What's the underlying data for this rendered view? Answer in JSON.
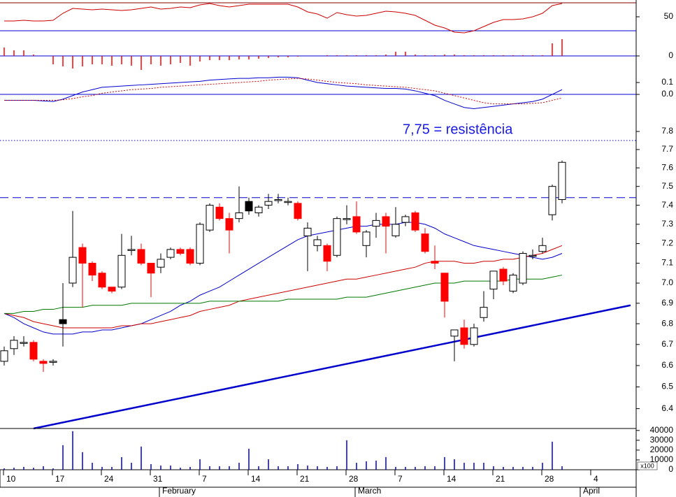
{
  "chart_data": {
    "type": "candlestick",
    "categories": [
      "10",
      null,
      null,
      null,
      null,
      "17",
      null,
      null,
      null,
      null,
      "24",
      null,
      null,
      null,
      null,
      "31",
      null,
      null,
      null,
      null,
      "7",
      null,
      null,
      null,
      null,
      "14",
      null,
      null,
      null,
      null,
      "21",
      null,
      null,
      null,
      null,
      "28",
      null,
      null,
      null,
      null,
      "7",
      null,
      null,
      null,
      null,
      "14",
      null,
      null,
      null,
      null,
      "21",
      null,
      null,
      null,
      null,
      "28",
      null,
      null,
      null,
      null,
      "4",
      null,
      null,
      null,
      null
    ],
    "months": [
      null,
      null,
      null,
      null,
      null,
      null,
      null,
      null,
      null,
      null,
      null,
      null,
      null,
      null,
      null,
      null,
      "February",
      null,
      null,
      null,
      null,
      null,
      null,
      null,
      null,
      null,
      null,
      null,
      null,
      null,
      null,
      null,
      null,
      null,
      null,
      null,
      "March",
      null,
      null,
      null,
      null,
      null,
      null,
      null,
      null,
      null,
      null,
      null,
      null,
      null,
      null,
      null,
      null,
      null,
      null,
      null,
      null,
      null,
      null,
      "April",
      null,
      null,
      null,
      null,
      null
    ],
    "annotation": "7,75 = resistência",
    "price": {
      "type": "candlestick",
      "log": true,
      "ylim": [
        6.31,
        7.91
      ],
      "yticks": [
        6.4,
        6.5,
        6.6,
        6.7,
        6.8,
        6.9,
        {
          "value": 7,
          "label": "7.0"
        },
        7.1,
        7.2,
        7.3,
        7.4,
        7.5,
        7.6,
        7.7,
        7.8
      ],
      "open": [
        6.62,
        6.68,
        6.71,
        6.71,
        6.62,
        6.62,
        6.8,
        7.0,
        7.18,
        7.1,
        7.05,
        6.98,
        6.98,
        7.17,
        7.17,
        7.1,
        7.08,
        7.13,
        7.17,
        7.17,
        7.1,
        7.27,
        7.39,
        7.33,
        7.33,
        7.37,
        7.36,
        7.4,
        7.43,
        7.42,
        7.41,
        7.24,
        7.19,
        7.19,
        7.14,
        7.33,
        7.34,
        7.19,
        7.29,
        7.34,
        7.24,
        7.31,
        7.36,
        7.25,
        7.11,
        7.05,
        6.74,
        6.78,
        6.7,
        6.83,
        6.97,
        7.07,
        6.96,
        7.0,
        7.14,
        7.16,
        7.35,
        7.43,
        null,
        null,
        null,
        null,
        null,
        null,
        null
      ],
      "high": [
        6.69,
        6.74,
        6.74,
        6.72,
        6.63,
        6.63,
        7.0,
        7.37,
        7.2,
        7.11,
        7.06,
        6.98,
        7.25,
        7.24,
        7.2,
        7.1,
        7.15,
        7.18,
        7.18,
        7.18,
        7.31,
        7.41,
        7.41,
        7.36,
        7.5,
        7.44,
        7.4,
        7.46,
        7.46,
        7.44,
        7.42,
        7.31,
        7.24,
        7.2,
        7.34,
        7.4,
        7.42,
        7.27,
        7.36,
        7.36,
        7.39,
        7.35,
        7.37,
        7.28,
        7.19,
        7.05,
        6.77,
        6.82,
        6.8,
        6.96,
        7.06,
        7.08,
        7.05,
        7.16,
        7.17,
        7.23,
        7.51,
        7.64,
        null,
        null,
        null,
        null,
        null,
        null,
        null
      ],
      "low": [
        6.6,
        6.65,
        6.69,
        6.62,
        6.57,
        6.6,
        6.69,
        6.98,
        6.88,
        7.01,
        6.97,
        6.95,
        6.97,
        7.14,
        7.09,
        6.93,
        7.05,
        7.12,
        7.14,
        7.09,
        7.09,
        7.26,
        7.32,
        7.15,
        7.31,
        7.35,
        7.34,
        7.38,
        7.41,
        7.4,
        7.32,
        7.06,
        7.16,
        7.06,
        7.13,
        7.3,
        7.25,
        7.13,
        7.23,
        7.15,
        7.23,
        7.29,
        7.26,
        7.15,
        7.07,
        6.83,
        6.62,
        6.68,
        6.69,
        6.81,
        6.92,
        6.99,
        6.95,
        6.99,
        7.12,
        7.15,
        7.32,
        7.41,
        null,
        null,
        null,
        null,
        null,
        null,
        null
      ],
      "close": [
        6.67,
        6.72,
        6.71,
        6.63,
        6.61,
        6.62,
        6.82,
        7.13,
        7.1,
        7.04,
        6.98,
        6.96,
        7.14,
        7.17,
        7.1,
        7.05,
        7.12,
        7.17,
        7.15,
        7.1,
        7.3,
        7.4,
        7.33,
        7.27,
        7.36,
        7.42,
        7.39,
        7.42,
        7.43,
        7.42,
        7.33,
        7.28,
        7.22,
        7.11,
        7.33,
        7.33,
        7.26,
        7.26,
        7.32,
        7.29,
        7.3,
        7.34,
        7.27,
        7.16,
        7.1,
        6.91,
        6.77,
        6.7,
        6.78,
        6.88,
        7.06,
        7.01,
        7.04,
        7.15,
        7.14,
        7.19,
        7.5,
        7.63,
        null,
        null,
        null,
        null,
        null,
        null,
        null
      ],
      "colors": [
        "#ffffff",
        "#ffffff",
        "#ffffff",
        "#ff0000",
        "#ff0000",
        "#ffffff",
        "#000000",
        "#ffffff",
        "#ff0000",
        "#ff0000",
        "#ff0000",
        "#ff0000",
        "#ffffff",
        "#ffffff",
        "#ff0000",
        "#ff0000",
        "#ffffff",
        "#ffffff",
        "#ff0000",
        "#ff0000",
        "#ffffff",
        "#ffffff",
        "#ff0000",
        "#ff0000",
        "#ffffff",
        "#000000",
        "#ffffff",
        "#ffffff",
        "#ffffff",
        "#ffffff",
        "#ff0000",
        "#ffffff",
        "#ffffff",
        "#ff0000",
        "#ffffff",
        "#ffffff",
        "#ff0000",
        "#ffffff",
        "#ffffff",
        "#ff0000",
        "#ffffff",
        "#ffffff",
        "#ff0000",
        "#ff0000",
        "#ff0000",
        "#ff0000",
        "#ffffff",
        "#ff0000",
        "#ffffff",
        "#ffffff",
        "#ffffff",
        "#ff0000",
        "#ffffff",
        "#ffffff",
        "#ffffff",
        "#ffffff",
        "#ffffff",
        "#ffffff",
        null,
        null,
        null,
        null,
        null,
        null,
        null
      ],
      "lines": [
        {
          "color": "#0000cc",
          "values": [
            6.85,
            6.83,
            6.8,
            6.78,
            6.76,
            6.75,
            6.75,
            6.75,
            6.76,
            6.76,
            6.77,
            6.77,
            6.78,
            6.79,
            6.8,
            6.82,
            6.84,
            6.86,
            6.89,
            6.91,
            6.94,
            6.96,
            6.98,
            7.01,
            7.04,
            7.07,
            7.1,
            7.13,
            7.16,
            7.19,
            7.22,
            7.24,
            7.25,
            7.26,
            7.27,
            7.28,
            7.29,
            7.29,
            7.3,
            7.3,
            7.3,
            7.31,
            7.31,
            7.3,
            7.28,
            7.25,
            7.23,
            7.21,
            7.19,
            7.18,
            7.17,
            7.16,
            7.15,
            7.14,
            7.13,
            7.12,
            7.13,
            7.15,
            null,
            null,
            null,
            null,
            null,
            null,
            null
          ]
        },
        {
          "color": "#cc0000",
          "values": [
            6.85,
            6.84,
            6.83,
            6.81,
            6.8,
            6.79,
            6.78,
            6.78,
            6.78,
            6.78,
            6.78,
            6.78,
            6.79,
            6.79,
            6.8,
            6.8,
            6.81,
            6.82,
            6.83,
            6.84,
            6.86,
            6.87,
            6.88,
            6.89,
            6.91,
            6.92,
            6.93,
            6.94,
            6.95,
            6.96,
            6.97,
            6.98,
            6.99,
            7.0,
            7.01,
            7.02,
            7.02,
            7.03,
            7.04,
            7.05,
            7.06,
            7.07,
            7.08,
            7.1,
            7.11,
            7.11,
            7.11,
            7.1,
            7.1,
            7.11,
            7.11,
            7.12,
            7.12,
            7.13,
            7.14,
            7.15,
            7.17,
            7.19,
            null,
            null,
            null,
            null,
            null,
            null,
            null
          ]
        },
        {
          "color": "#007700",
          "values": [
            6.85,
            6.85,
            6.86,
            6.86,
            6.87,
            6.87,
            6.88,
            6.88,
            6.88,
            6.89,
            6.89,
            6.89,
            6.89,
            6.9,
            6.9,
            6.9,
            6.9,
            6.9,
            6.9,
            6.9,
            6.9,
            6.91,
            6.91,
            6.91,
            6.91,
            6.91,
            6.91,
            6.91,
            6.91,
            6.92,
            6.92,
            6.92,
            6.92,
            6.92,
            6.92,
            6.93,
            6.93,
            6.93,
            6.94,
            6.95,
            6.96,
            6.97,
            6.98,
            6.99,
            7.0,
            7.0,
            7.0,
            7.01,
            7.01,
            7.01,
            7.01,
            7.01,
            7.02,
            7.02,
            7.02,
            7.02,
            7.03,
            7.04,
            null,
            null,
            null,
            null,
            null,
            null,
            null
          ]
        }
      ],
      "resistance": 7.75,
      "support": 7.44,
      "trendline": {
        "color": "#0000cc",
        "x": [
          3,
          64
        ],
        "values": [
          6.31,
          6.89
        ]
      }
    },
    "rsi": {
      "type": "line",
      "ylim": [
        22,
        74
      ],
      "yticks": [
        50
      ],
      "levels": [
        70,
        30
      ],
      "level_colors": [
        "#800000",
        "#0000cc"
      ],
      "color": "#cc0000",
      "values": [
        44,
        44,
        45,
        44,
        44,
        45,
        55,
        62,
        61,
        60,
        61,
        60,
        59,
        60,
        62,
        64,
        61,
        62,
        64,
        63,
        67,
        69,
        66,
        64,
        66,
        68,
        68,
        68,
        68,
        68,
        64,
        57,
        54,
        48,
        56,
        53,
        51,
        52,
        55,
        58,
        57,
        55,
        52,
        45,
        38,
        34,
        28,
        27,
        30,
        36,
        42,
        46,
        46,
        47,
        50,
        55,
        66,
        69,
        null,
        null,
        null,
        null,
        null,
        null,
        null
      ]
    },
    "histogram": {
      "type": "bar",
      "ylim": [
        -0.2,
        0.25
      ],
      "yticks": [
        0
      ],
      "color": "#ff0000",
      "values": [
        0.12,
        0.08,
        0.08,
        0.02,
        0,
        -0.12,
        -0.15,
        -0.18,
        -0.15,
        -0.12,
        -0.12,
        -0.14,
        -0.12,
        -0.14,
        -0.2,
        -0.12,
        -0.14,
        -0.12,
        -0.1,
        -0.14,
        -0.08,
        -0.06,
        -0.06,
        -0.06,
        -0.05,
        -0.05,
        -0.04,
        -0.03,
        -0.02,
        -0.02,
        -0.01,
        0,
        0,
        0.01,
        0.01,
        0.01,
        0.01,
        0.01,
        0.01,
        0.02,
        0.06,
        0.06,
        0.02,
        0.01,
        0.01,
        0.02,
        0.02,
        0.01,
        0.01,
        0.01,
        0.01,
        0.01,
        0.01,
        0.01,
        0.01,
        0.01,
        0.18,
        0.24,
        null,
        null,
        null,
        null,
        null,
        null,
        null
      ]
    },
    "macd": {
      "type": "line",
      "ylim": [
        -0.176,
        0.253
      ],
      "yticks": [
        0.1,
        {
          "value": 0,
          "label": "0.0"
        }
      ],
      "series": [
        {
          "color": "#0000cc",
          "values": [
            -0.05,
            -0.05,
            -0.05,
            -0.05,
            -0.055,
            -0.06,
            -0.04,
            -0.01,
            0.02,
            0.04,
            0.06,
            0.065,
            0.07,
            0.075,
            0.08,
            0.085,
            0.09,
            0.095,
            0.1,
            0.105,
            0.11,
            0.12,
            0.125,
            0.13,
            0.135,
            0.135,
            0.14,
            0.14,
            0.145,
            0.145,
            0.14,
            0.12,
            0.1,
            0.09,
            0.08,
            0.07,
            0.065,
            0.06,
            0.055,
            0.05,
            0.05,
            0.045,
            0.03,
            0.01,
            -0.01,
            -0.05,
            -0.08,
            -0.11,
            -0.12,
            -0.11,
            -0.1,
            -0.09,
            -0.08,
            -0.07,
            -0.06,
            -0.04,
            0,
            0.04,
            null,
            null,
            null,
            null,
            null,
            null,
            null
          ]
        },
        {
          "color": "#cc0000",
          "dashed": true,
          "values": [
            -0.05,
            -0.05,
            -0.05,
            -0.05,
            -0.05,
            -0.05,
            -0.045,
            -0.035,
            -0.02,
            -0.01,
            0.01,
            0.02,
            0.03,
            0.04,
            0.045,
            0.05,
            0.06,
            0.065,
            0.07,
            0.075,
            0.08,
            0.085,
            0.09,
            0.095,
            0.1,
            0.105,
            0.11,
            0.12,
            0.125,
            0.13,
            0.135,
            0.13,
            0.12,
            0.11,
            0.1,
            0.095,
            0.09,
            0.08,
            0.075,
            0.07,
            0.065,
            0.06,
            0.05,
            0.04,
            0.03,
            0.01,
            -0.01,
            -0.03,
            -0.05,
            -0.07,
            -0.08,
            -0.08,
            -0.08,
            -0.08,
            -0.075,
            -0.07,
            -0.05,
            -0.03,
            null,
            null,
            null,
            null,
            null,
            null,
            null
          ]
        }
      ]
    },
    "volume": {
      "type": "bar",
      "ylim": [
        0,
        42000
      ],
      "yticks": [
        0,
        10000,
        20000,
        30000,
        40000
      ],
      "unit_label": "x100",
      "color": "#0000cc",
      "values": [
        1400,
        2100,
        2900,
        2100,
        3600,
        1400,
        25000,
        39300,
        17900,
        7100,
        2900,
        2900,
        12900,
        7100,
        23600,
        5700,
        4300,
        4300,
        2100,
        2900,
        10700,
        3600,
        3600,
        3600,
        7100,
        21400,
        3600,
        10700,
        3600,
        3600,
        5700,
        4300,
        3600,
        2900,
        3600,
        30000,
        7100,
        8600,
        9300,
        12900,
        2900,
        2900,
        2900,
        3600,
        3600,
        12900,
        10700,
        7100,
        7100,
        7100,
        3600,
        2900,
        2900,
        2900,
        2900,
        7100,
        28600,
        3600,
        null,
        null,
        null,
        null,
        null,
        null,
        null
      ]
    }
  }
}
